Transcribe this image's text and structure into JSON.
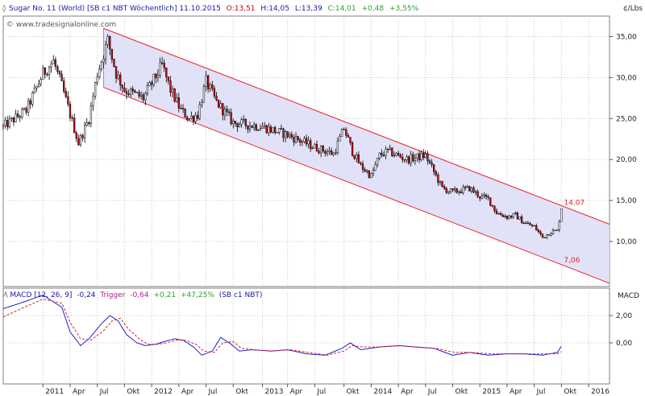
{
  "header": {
    "instrument": "Sugar No. 11 (World) [SB c1 NBT  Wöchentlich] 11.10.2015",
    "open": "O:13,51",
    "high": "H:14,05",
    "low": "L:13,39",
    "close": "C:14,01",
    "change": "+0,48",
    "change_pct": "+3,55%",
    "unit": "¢/Lbs",
    "watermark": "© www.tradesignalonline.com"
  },
  "macd_header": {
    "label": "MACD [12, 26, 9]",
    "macd_value": "-0,24",
    "trigger_label": "Trigger",
    "trigger_value": "-0,64",
    "diff": "+0,21",
    "diff_pct": "+47,25%",
    "source": "(SB c1 NBT)",
    "axis_title": "MACD"
  },
  "colors": {
    "up": "#ffffff",
    "down": "#c0141a",
    "channel_fill": "#dcdcf6",
    "channel_line": "#e8242a",
    "macd_line": "#2222cc",
    "trigger_line": "#cc2222",
    "grid": "#c8c8c8",
    "header_red": "#cc0000",
    "header_green": "#2e9e2e",
    "header_blue": "#1a1aaa",
    "header_purple": "#b02090"
  },
  "chart_data": [
    {
      "type": "candlestick",
      "ylim": [
        4.5,
        37.5
      ],
      "yticks": [
        10,
        15,
        20,
        25,
        30,
        35
      ],
      "ytick_labels": [
        "10,00",
        "15,00",
        "20,00",
        "25,00",
        "30,00",
        "35,00"
      ],
      "xlim": [
        "2010-08-23",
        "2016-03-14"
      ],
      "xticks": [
        {
          "date": "2011-01-03",
          "label": "2011"
        },
        {
          "date": "2011-04-04",
          "label": "Apr"
        },
        {
          "date": "2011-07-04",
          "label": "Jul"
        },
        {
          "date": "2011-10-03",
          "label": "Okt"
        },
        {
          "date": "2012-01-02",
          "label": "2012"
        },
        {
          "date": "2012-04-02",
          "label": "Apr"
        },
        {
          "date": "2012-07-02",
          "label": "Jul"
        },
        {
          "date": "2012-10-01",
          "label": "Okt"
        },
        {
          "date": "2013-01-07",
          "label": "2013"
        },
        {
          "date": "2013-04-01",
          "label": "Apr"
        },
        {
          "date": "2013-07-01",
          "label": "Jul"
        },
        {
          "date": "2013-10-07",
          "label": "Okt"
        },
        {
          "date": "2014-01-06",
          "label": "2014"
        },
        {
          "date": "2014-04-07",
          "label": "Apr"
        },
        {
          "date": "2014-07-07",
          "label": "Jul"
        },
        {
          "date": "2014-10-06",
          "label": "Okt"
        },
        {
          "date": "2015-01-05",
          "label": "2015"
        },
        {
          "date": "2015-04-06",
          "label": "Apr"
        },
        {
          "date": "2015-07-06",
          "label": "Jul"
        },
        {
          "date": "2015-10-05",
          "label": "Okt"
        },
        {
          "date": "2016-01-04",
          "label": "2016"
        }
      ],
      "grid": true,
      "closes_anchor_dates": [
        "2010-08-23",
        "2010-11-08",
        "2011-01-03",
        "2011-02-07",
        "2011-03-07",
        "2011-05-02",
        "2011-06-06",
        "2011-07-04",
        "2011-08-08",
        "2011-09-05",
        "2011-10-03",
        "2011-12-05",
        "2012-02-06",
        "2012-03-05",
        "2012-04-09",
        "2012-05-07",
        "2012-06-04",
        "2012-07-02",
        "2012-08-06",
        "2012-10-01",
        "2013-01-07",
        "2013-04-01",
        "2013-07-01",
        "2013-09-02",
        "2013-10-07",
        "2013-11-04",
        "2013-12-02",
        "2014-01-06",
        "2014-02-03",
        "2014-03-03",
        "2014-05-05",
        "2014-07-07",
        "2014-08-04",
        "2014-09-01",
        "2014-10-06",
        "2014-12-01",
        "2015-01-05",
        "2015-02-02",
        "2015-03-02",
        "2015-04-06",
        "2015-05-04",
        "2015-06-01",
        "2015-07-06",
        "2015-08-03",
        "2015-08-31",
        "2015-09-21",
        "2015-10-05"
      ],
      "closes_anchor_values": [
        24.0,
        26.0,
        30.5,
        32.0,
        29.0,
        22.0,
        25.0,
        30.5,
        34.5,
        30.5,
        28.5,
        27.5,
        31.5,
        28.5,
        26.0,
        25.0,
        25.5,
        29.5,
        27.0,
        24.5,
        24.0,
        23.0,
        21.5,
        20.7,
        23.8,
        21.0,
        19.2,
        18.0,
        20.5,
        21.0,
        20.0,
        20.5,
        18.5,
        16.5,
        16.0,
        16.5,
        15.5,
        15.2,
        13.5,
        13.0,
        13.2,
        12.3,
        11.8,
        10.5,
        11.2,
        11.3,
        14.01
      ],
      "channel": {
        "upper": {
          "start": {
            "date": "2011-07-25",
            "value": 36.0
          },
          "end": {
            "date": "2016-03-14",
            "value": 12.1
          }
        },
        "lower": {
          "start": {
            "date": "2011-07-25",
            "value": 28.8
          },
          "end": {
            "date": "2016-03-14",
            "value": 4.9
          }
        },
        "labels": [
          {
            "text": "14,07",
            "date": "2015-10-05",
            "value": 14.07
          },
          {
            "text": "7,06",
            "date": "2015-10-05",
            "value": 7.06
          }
        ]
      }
    },
    {
      "type": "line",
      "ylim": [
        -3.0,
        4.0
      ],
      "yticks": [
        0,
        2
      ],
      "ytick_labels": [
        "0,00",
        "2,00"
      ],
      "series": [
        {
          "name": "MACD",
          "anchor_dates": [
            "2010-08-23",
            "2010-11-01",
            "2011-01-03",
            "2011-03-07",
            "2011-04-04",
            "2011-05-09",
            "2011-06-06",
            "2011-07-18",
            "2011-08-15",
            "2011-09-12",
            "2011-10-10",
            "2011-11-14",
            "2011-12-12",
            "2012-01-16",
            "2012-02-13",
            "2012-03-19",
            "2012-04-16",
            "2012-05-21",
            "2012-06-18",
            "2012-07-23",
            "2012-08-20",
            "2012-09-24",
            "2012-10-22",
            "2012-12-03",
            "2013-02-04",
            "2013-04-01",
            "2013-06-03",
            "2013-08-05",
            "2013-09-30",
            "2013-10-28",
            "2013-12-02",
            "2014-02-03",
            "2014-04-07",
            "2014-06-02",
            "2014-08-04",
            "2014-10-06",
            "2014-12-01",
            "2015-02-02",
            "2015-04-06",
            "2015-06-01",
            "2015-08-03",
            "2015-09-21",
            "2015-10-05"
          ],
          "anchor_values": [
            2.5,
            3.0,
            3.5,
            2.6,
            0.8,
            -0.2,
            0.3,
            1.4,
            2.0,
            1.6,
            0.6,
            0.0,
            -0.2,
            -0.1,
            0.1,
            0.3,
            0.2,
            -0.3,
            -0.9,
            -0.6,
            0.4,
            -0.1,
            -0.6,
            -0.5,
            -0.6,
            -0.5,
            -0.8,
            -0.9,
            -0.4,
            0.0,
            -0.5,
            -0.3,
            -0.2,
            -0.3,
            -0.4,
            -0.9,
            -0.7,
            -0.9,
            -0.8,
            -0.8,
            -0.9,
            -0.7,
            -0.24
          ]
        },
        {
          "name": "Trigger",
          "anchor_dates": [
            "2010-08-23",
            "2010-11-01",
            "2011-01-03",
            "2011-03-07",
            "2011-04-04",
            "2011-05-09",
            "2011-06-13",
            "2011-07-25",
            "2011-08-22",
            "2011-09-19",
            "2011-10-17",
            "2011-11-21",
            "2011-12-19",
            "2012-01-23",
            "2012-02-20",
            "2012-03-26",
            "2012-04-23",
            "2012-05-28",
            "2012-06-25",
            "2012-07-30",
            "2012-08-27",
            "2012-10-01",
            "2012-10-29",
            "2012-12-10",
            "2013-02-11",
            "2013-04-08",
            "2013-06-10",
            "2013-08-12",
            "2013-10-07",
            "2013-11-04",
            "2013-12-09",
            "2014-02-10",
            "2014-04-14",
            "2014-06-09",
            "2014-08-11",
            "2014-10-13",
            "2014-12-08",
            "2015-02-09",
            "2015-04-13",
            "2015-06-08",
            "2015-08-10",
            "2015-09-21",
            "2015-10-05"
          ],
          "anchor_values": [
            1.9,
            2.6,
            3.2,
            2.9,
            1.5,
            0.3,
            0.2,
            0.9,
            1.6,
            1.8,
            1.0,
            0.3,
            -0.1,
            -0.1,
            0.0,
            0.2,
            0.2,
            -0.1,
            -0.6,
            -0.7,
            0.0,
            0.1,
            -0.4,
            -0.5,
            -0.6,
            -0.5,
            -0.7,
            -0.9,
            -0.6,
            -0.2,
            -0.3,
            -0.3,
            -0.2,
            -0.3,
            -0.4,
            -0.7,
            -0.7,
            -0.8,
            -0.8,
            -0.8,
            -0.8,
            -0.8,
            -0.64
          ]
        }
      ]
    }
  ]
}
